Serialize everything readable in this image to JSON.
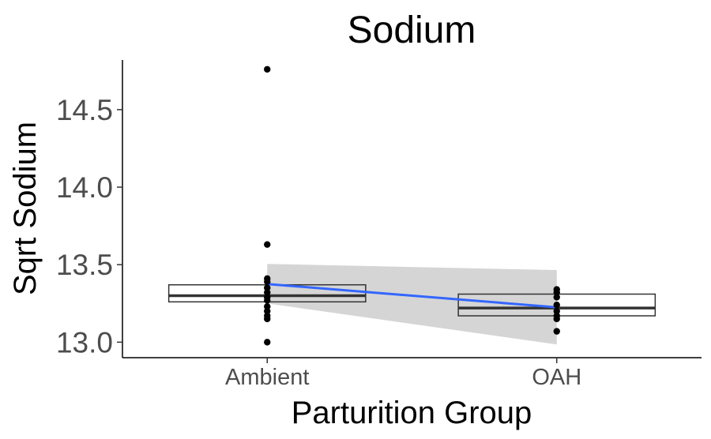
{
  "chart_data": {
    "type": "box",
    "title": "Sodium",
    "xlabel": "Parturition Group",
    "ylabel": "Sqrt Sodium",
    "categories": [
      "Ambient",
      "OAH"
    ],
    "ylim": [
      12.9,
      14.82
    ],
    "yticks": [
      13.0,
      13.5,
      14.0,
      14.5
    ],
    "ytick_labels": [
      "13.0",
      "13.5",
      "14.0",
      "14.5"
    ],
    "grid": false,
    "legend": "none",
    "boxes": [
      {
        "category": "Ambient",
        "q1": 13.26,
        "median": 13.3,
        "q3": 13.37
      },
      {
        "category": "OAH",
        "q1": 13.17,
        "median": 13.22,
        "q3": 13.31
      }
    ],
    "points": [
      {
        "category": "Ambient",
        "values": [
          14.76,
          13.63,
          13.41,
          13.39,
          13.35,
          13.32,
          13.29,
          13.27,
          13.23,
          13.2,
          13.17,
          13.15,
          13.0
        ]
      },
      {
        "category": "OAH",
        "values": [
          13.34,
          13.32,
          13.29,
          13.24,
          13.2,
          13.17,
          13.15,
          13.07
        ]
      }
    ],
    "trend_line": {
      "color": "#3366ff",
      "values": [
        13.375,
        13.225
      ],
      "ci_lower": [
        13.25,
        12.985
      ],
      "ci_upper": [
        13.505,
        13.465
      ],
      "ci_color": "#d3d3d3"
    }
  }
}
